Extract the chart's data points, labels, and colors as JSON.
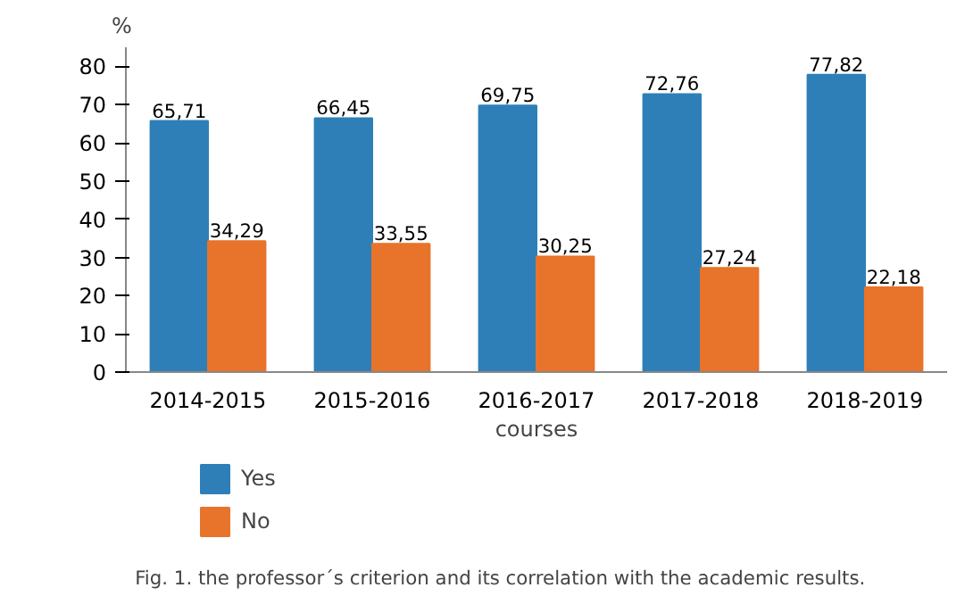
{
  "chart_data": {
    "type": "bar",
    "ylabel": "%",
    "xlabel": "courses",
    "categories": [
      "2014-2015",
      "2015-2016",
      "2016-2017",
      "2017-2018",
      "2018-2019"
    ],
    "series": [
      {
        "name": "Yes",
        "color": "#2e7fb8",
        "values": [
          65.71,
          66.45,
          69.75,
          72.76,
          77.82
        ],
        "value_labels": [
          "65,71",
          "66,45",
          "69,75",
          "72,76",
          "77,82"
        ]
      },
      {
        "name": "No",
        "color": "#e8732a",
        "values": [
          34.29,
          33.55,
          30.25,
          27.24,
          22.18
        ],
        "value_labels": [
          "34,29",
          "33,55",
          "30,25",
          "27,24",
          "22,18"
        ]
      }
    ],
    "ylim": [
      0,
      85
    ],
    "yticks": [
      0,
      10,
      20,
      30,
      40,
      50,
      60,
      70,
      80
    ],
    "grid": false,
    "legend": "bottom left",
    "annotations": [
      "Fig. 1. the professor´s criterion and its correlation with the academic results."
    ]
  }
}
